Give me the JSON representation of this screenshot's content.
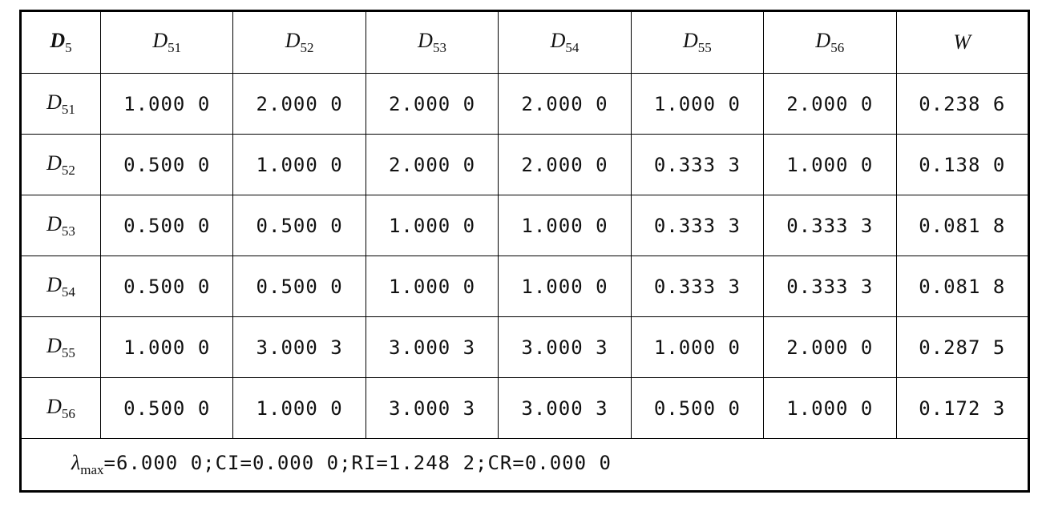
{
  "table": {
    "header": [
      {
        "symbol": "D",
        "sub": "5"
      },
      {
        "symbol": "D",
        "sub": "51"
      },
      {
        "symbol": "D",
        "sub": "52"
      },
      {
        "symbol": "D",
        "sub": "53"
      },
      {
        "symbol": "D",
        "sub": "54"
      },
      {
        "symbol": "D",
        "sub": "55"
      },
      {
        "symbol": "D",
        "sub": "56"
      },
      {
        "symbol": "W"
      }
    ],
    "rows": [
      {
        "label": {
          "symbol": "D",
          "sub": "51"
        },
        "cells": [
          "1.000 0",
          "2.000 0",
          "2.000 0",
          "2.000 0",
          "1.000 0",
          "2.000 0",
          "0.238 6"
        ]
      },
      {
        "label": {
          "symbol": "D",
          "sub": "52"
        },
        "cells": [
          "0.500 0",
          "1.000 0",
          "2.000 0",
          "2.000 0",
          "0.333 3",
          "1.000 0",
          "0.138 0"
        ]
      },
      {
        "label": {
          "symbol": "D",
          "sub": "53"
        },
        "cells": [
          "0.500 0",
          "0.500 0",
          "1.000 0",
          "1.000 0",
          "0.333 3",
          "0.333 3",
          "0.081 8"
        ]
      },
      {
        "label": {
          "symbol": "D",
          "sub": "54"
        },
        "cells": [
          "0.500 0",
          "0.500 0",
          "1.000 0",
          "1.000 0",
          "0.333 3",
          "0.333 3",
          "0.081 8"
        ]
      },
      {
        "label": {
          "symbol": "D",
          "sub": "55"
        },
        "cells": [
          "1.000 0",
          "3.000 3",
          "3.000 3",
          "3.000 3",
          "1.000 0",
          "2.000 0",
          "0.287 5"
        ]
      },
      {
        "label": {
          "symbol": "D",
          "sub": "56"
        },
        "cells": [
          "0.500 0",
          "1.000 0",
          "3.000 3",
          "3.000 3",
          "0.500 0",
          "1.000 0",
          "0.172 3"
        ]
      }
    ],
    "footer": {
      "symbol": "λ",
      "sub": "max",
      "text": "=6.000 0;CI=0.000 0;RI=1.248 2;CR=0.000 0"
    }
  }
}
